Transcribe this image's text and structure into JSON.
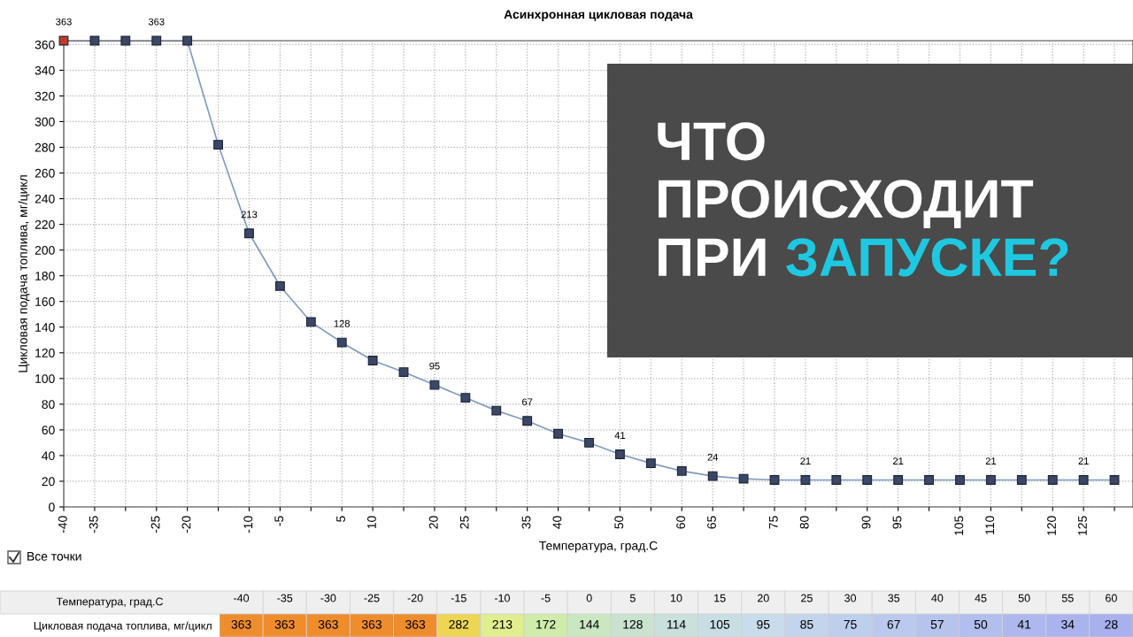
{
  "chart_data": [
    {
      "type": "line",
      "title": "Асинхронная цикловая подача",
      "xlabel": "Температура, град.С",
      "ylabel": "Цикловая подача топлива, мг/цикл",
      "x": [
        -40,
        -35,
        -30,
        -25,
        -20,
        -15,
        -10,
        -5,
        0,
        5,
        10,
        15,
        20,
        25,
        30,
        35,
        40,
        45,
        50,
        55,
        60,
        65,
        70,
        75,
        80,
        85,
        90,
        95,
        100,
        105,
        110,
        115,
        120,
        125,
        130
      ],
      "series": [
        {
          "color": "#7f9cc0",
          "values": [
            363,
            363,
            363,
            363,
            363,
            282,
            213,
            172,
            144,
            128,
            114,
            105,
            95,
            85,
            75,
            67,
            57,
            50,
            41,
            34,
            28,
            24,
            22,
            21,
            21,
            21,
            21,
            21,
            21,
            21,
            21,
            21,
            21,
            21,
            21
          ],
          "colors": [
            "#c0392b",
            "#3b4766",
            "#3b4766",
            "#3b4766",
            "#3b4766",
            "#3b4766",
            "#3b4766",
            "#3b4766",
            "#3b4766",
            "#3b4766",
            "#3b4766",
            "#3b4766",
            "#3b4766",
            "#3b4766",
            "#3b4766",
            "#3b4766",
            "#3b4766",
            "#3b4766",
            "#3b4766",
            "#3b4766",
            "#3b4766",
            "#3b4766",
            "#3b4766",
            "#3b4766",
            "#3b4766",
            "#3b4766",
            "#3b4766",
            "#3b4766",
            "#3b4766",
            "#3b4766",
            "#3b4766",
            "#3b4766",
            "#3b4766",
            "#3b4766",
            "#3b4766"
          ],
          "value_labels": [
            "363",
            null,
            null,
            "363",
            null,
            null,
            "213",
            null,
            null,
            "128",
            null,
            null,
            "95",
            null,
            null,
            "67",
            null,
            null,
            "41",
            null,
            null,
            "24",
            null,
            null,
            "21",
            null,
            null,
            "21",
            null,
            null,
            "21",
            null,
            null,
            "21",
            null
          ]
        }
      ],
      "xlim": [
        -40,
        133
      ],
      "ylim": [
        0,
        363
      ],
      "xticks": [
        -40,
        -35,
        {
          "value": -30,
          "label": null
        },
        -25,
        -20,
        {
          "value": -15,
          "label": null
        },
        -10,
        -5,
        {
          "value": 0,
          "label": null
        },
        5,
        10,
        {
          "value": 15,
          "label": null
        },
        20,
        25,
        {
          "value": 30,
          "label": null
        },
        35,
        40,
        {
          "value": 45,
          "label": null
        },
        50,
        {
          "value": 55,
          "label": null
        },
        60,
        65,
        {
          "value": 70,
          "label": null
        },
        75,
        80,
        {
          "value": 85,
          "label": null
        },
        90,
        95,
        {
          "value": 100,
          "label": null
        },
        105,
        110,
        {
          "value": 115,
          "label": null
        },
        120,
        125,
        {
          "value": 130,
          "label": null
        }
      ],
      "yticks": [
        0,
        20,
        40,
        60,
        80,
        100,
        120,
        140,
        160,
        180,
        200,
        220,
        240,
        260,
        280,
        300,
        320,
        340,
        360
      ],
      "grid": true,
      "marker": "square",
      "line_style": "solid",
      "data_labels": true,
      "annotations": [
        "ЧТО",
        "ПРОИСХОДИТ",
        "ПРИ",
        "ЗАПУСКЕ?",
        "Все точки"
      ]
    },
    {
      "type": "heatmap",
      "xlabel": "Температура, град.С",
      "y_categories": [
        "Цикловая подача топлива, мг/цикл"
      ],
      "categories": [
        "-40",
        "-35",
        "-30",
        "-25",
        "-20",
        "-15",
        "-10",
        "-5",
        "0",
        "5",
        "10",
        "15",
        "20",
        "25",
        "30",
        "35",
        "40",
        "45",
        "50",
        "55",
        "60"
      ],
      "cells": [
        [
          363,
          363,
          363,
          363,
          363,
          282,
          213,
          172,
          144,
          128,
          114,
          105,
          95,
          85,
          75,
          67,
          57,
          50,
          41,
          34,
          28
        ]
      ],
      "data_labels": true
    }
  ]
}
